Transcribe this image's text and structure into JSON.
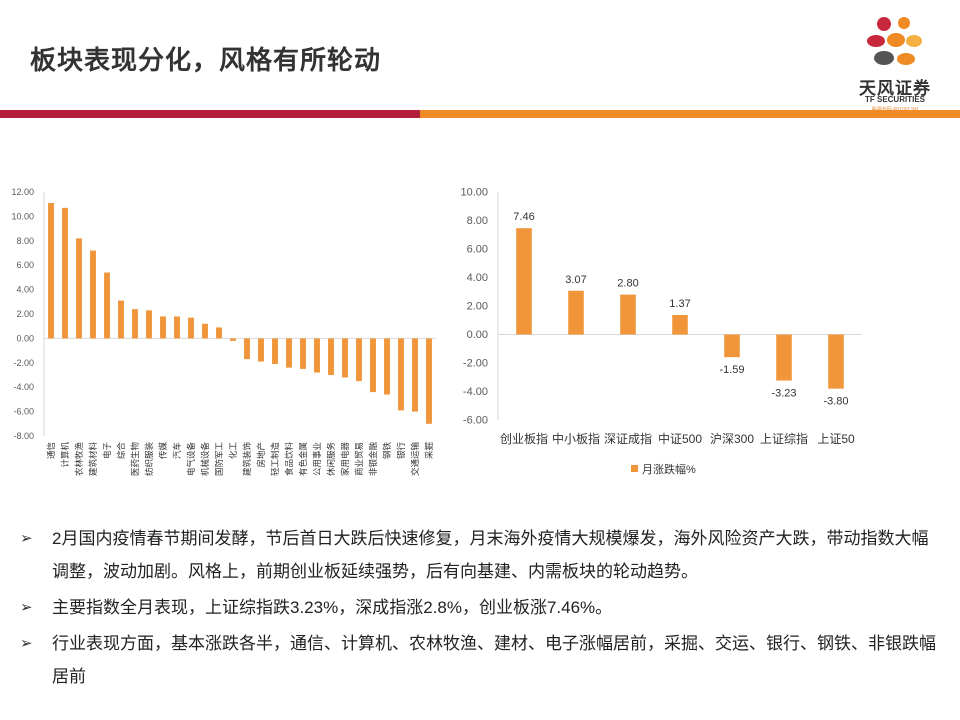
{
  "slide": {
    "title": "板块表现分化，风格有所轮动",
    "logo": {
      "name_cn": "天风证券",
      "name_en": "TF SECURITIES",
      "stock_code": "股票代码 601162.SH"
    }
  },
  "colors": {
    "bar": "#f0953a",
    "band_left": "#b11d3b",
    "band_right": "#f08a24",
    "axis": "#d9d9d9",
    "text": "#595959"
  },
  "chart_data": [
    {
      "type": "bar",
      "categories": [
        "通信",
        "计算机",
        "农林牧渔",
        "建筑材料",
        "电子",
        "综合",
        "医药生物",
        "纺织服装",
        "传媒",
        "汽车",
        "电气设备",
        "机械设备",
        "国防军工",
        "化工",
        "建筑装饰",
        "房地产",
        "轻工制造",
        "食品饮料",
        "有色金属",
        "公用事业",
        "休闲服务",
        "家用电器",
        "商业贸易",
        "非银金融",
        "钢铁",
        "银行",
        "交通运输",
        "采掘"
      ],
      "values": [
        11.1,
        10.7,
        8.2,
        7.2,
        5.4,
        3.1,
        2.4,
        2.3,
        1.8,
        1.8,
        1.7,
        1.2,
        0.9,
        -0.2,
        -1.7,
        -1.9,
        -2.1,
        -2.4,
        -2.5,
        -2.8,
        -3.0,
        -3.2,
        -3.5,
        -4.4,
        -4.6,
        -5.9,
        -6.0,
        -7.0
      ],
      "ylim": [
        -8,
        12
      ],
      "ytick_labels": [
        "12.00",
        "10.00",
        "8.00",
        "6.00",
        "4.00",
        "2.00",
        "0.00",
        "-2.00",
        "-4.00",
        "-6.00",
        "-8.00"
      ],
      "grid": false
    },
    {
      "type": "bar",
      "categories": [
        "创业板指",
        "中小板指",
        "深证成指",
        "中证500",
        "沪深300",
        "上证综指",
        "上证50"
      ],
      "values": [
        7.46,
        3.07,
        2.8,
        1.37,
        -1.59,
        -3.23,
        -3.8
      ],
      "data_labels": [
        "7.46",
        "3.07",
        "2.80",
        "1.37",
        "-1.59",
        "-3.23",
        "-3.80"
      ],
      "ylim": [
        -6,
        10
      ],
      "ytick_labels": [
        "10.00",
        "8.00",
        "6.00",
        "4.00",
        "2.00",
        "0.00",
        "-2.00",
        "-4.00",
        "-6.00"
      ],
      "series_name": "月涨跌幅%",
      "legend": "bottom",
      "grid": false
    }
  ],
  "bullets": [
    "2月国内疫情春节期间发酵，节后首日大跌后快速修复，月末海外疫情大规模爆发，海外风险资产大跌，带动指数大幅调整，波动加剧。风格上，前期创业板延续强势，后有向基建、内需板块的轮动趋势。",
    "主要指数全月表现，上证综指跌3.23%，深成指涨2.8%，创业板涨7.46%。",
    "行业表现方面，基本涨跌各半，通信、计算机、农林牧渔、建材、电子涨幅居前，采掘、交运、银行、钢铁、非银跌幅居前"
  ],
  "bullet_marker": "➢"
}
